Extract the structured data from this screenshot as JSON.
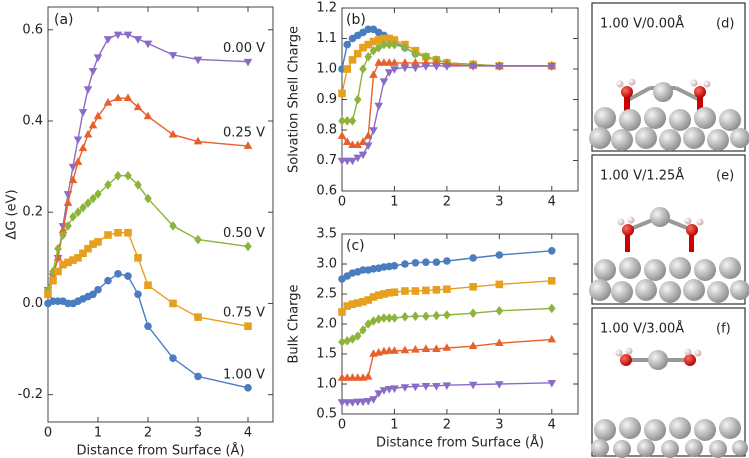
{
  "chart_data": [
    {
      "type": "line",
      "tag": "(a)",
      "xlabel": "Distance from Surface (Å)",
      "ylabel": "ΔG (eV)",
      "x": [
        0,
        0.1,
        0.2,
        0.3,
        0.4,
        0.5,
        0.6,
        0.7,
        0.8,
        0.9,
        1.0,
        1.2,
        1.4,
        1.6,
        1.8,
        2.0,
        2.5,
        3.0,
        4.0
      ],
      "xlim": [
        0,
        4.5
      ],
      "xticks": [
        0,
        1,
        2,
        3,
        4
      ],
      "ylim": [
        -0.26,
        0.65
      ],
      "yticks": [
        -0.2,
        {
          "value": 0,
          "label": "0.0"
        },
        0.2,
        0.4,
        0.6
      ],
      "series": [
        {
          "name": "0.00 V",
          "color": "#8a6cc4",
          "marker": "triangle-down",
          "values": [
            0.03,
            0.06,
            0.1,
            0.17,
            0.24,
            0.3,
            0.36,
            0.42,
            0.47,
            0.51,
            0.54,
            0.58,
            0.59,
            0.59,
            0.58,
            0.57,
            0.545,
            0.535,
            0.53
          ]
        },
        {
          "name": "0.25 V",
          "color": "#e8602c",
          "marker": "triangle-up",
          "values": [
            0.03,
            0.06,
            0.1,
            0.16,
            0.22,
            0.27,
            0.31,
            0.34,
            0.37,
            0.39,
            0.41,
            0.44,
            0.45,
            0.45,
            0.43,
            0.41,
            0.37,
            0.355,
            0.345
          ]
        },
        {
          "name": "0.50 V",
          "color": "#8cb43a",
          "marker": "diamond",
          "values": [
            0.03,
            0.07,
            0.12,
            0.15,
            0.17,
            0.19,
            0.2,
            0.21,
            0.22,
            0.23,
            0.24,
            0.26,
            0.28,
            0.28,
            0.26,
            0.23,
            0.17,
            0.14,
            0.125
          ]
        },
        {
          "name": "0.75 V",
          "color": "#e6a01e",
          "marker": "square",
          "values": [
            0.02,
            0.05,
            0.07,
            0.085,
            0.09,
            0.095,
            0.1,
            0.11,
            0.12,
            0.13,
            0.135,
            0.15,
            0.155,
            0.155,
            0.1,
            0.04,
            0.0,
            -0.03,
            -0.05
          ]
        },
        {
          "name": "1.00 V",
          "color": "#4a7cc0",
          "marker": "circle",
          "values": [
            0,
            0.005,
            0.005,
            0.005,
            0.0,
            0.0,
            0.005,
            0.01,
            0.015,
            0.02,
            0.03,
            0.05,
            0.065,
            0.06,
            0.02,
            -0.05,
            -0.12,
            -0.16,
            -0.185
          ]
        }
      ]
    },
    {
      "type": "line",
      "tag": "(b)",
      "ylabel": "Solvation Shell Charge",
      "x": [
        0,
        0.1,
        0.2,
        0.3,
        0.4,
        0.5,
        0.6,
        0.7,
        0.8,
        0.9,
        1.0,
        1.2,
        1.4,
        1.6,
        1.8,
        2.0,
        2.5,
        3.0,
        4.0
      ],
      "xlim": [
        0,
        4.5
      ],
      "xticks": [
        0,
        1,
        2,
        3,
        4
      ],
      "ylim": [
        0.6,
        1.2
      ],
      "yticks": [
        0.6,
        0.7,
        0.8,
        0.9,
        {
          "value": 1,
          "label": "1.0"
        },
        1.1,
        1.2
      ],
      "series": [
        {
          "color": "#4a7cc0",
          "marker": "circle",
          "values": [
            1.0,
            1.08,
            1.1,
            1.11,
            1.12,
            1.13,
            1.13,
            1.12,
            1.11,
            1.1,
            1.09,
            1.07,
            1.05,
            1.04,
            1.03,
            1.02,
            1.015,
            1.01,
            1.01
          ]
        },
        {
          "color": "#e6a01e",
          "marker": "square",
          "values": [
            0.92,
            1.0,
            1.03,
            1.05,
            1.07,
            1.08,
            1.09,
            1.095,
            1.1,
            1.1,
            1.095,
            1.08,
            1.06,
            1.04,
            1.03,
            1.02,
            1.015,
            1.01,
            1.01
          ]
        },
        {
          "color": "#8cb43a",
          "marker": "diamond",
          "values": [
            0.83,
            0.83,
            0.83,
            0.9,
            1.0,
            1.04,
            1.06,
            1.07,
            1.08,
            1.08,
            1.08,
            1.07,
            1.05,
            1.04,
            1.03,
            1.02,
            1.015,
            1.01,
            1.01
          ]
        },
        {
          "color": "#e8602c",
          "marker": "triangle-up",
          "values": [
            0.78,
            0.76,
            0.75,
            0.75,
            0.76,
            0.78,
            0.98,
            1.02,
            1.02,
            1.02,
            1.02,
            1.02,
            1.02,
            1.02,
            1.02,
            1.015,
            1.01,
            1.01,
            1.01
          ]
        },
        {
          "color": "#8a6cc4",
          "marker": "triangle-down",
          "values": [
            0.7,
            0.7,
            0.7,
            0.71,
            0.72,
            0.75,
            0.8,
            0.88,
            0.96,
            0.99,
            1.0,
            1.005,
            1.005,
            1.01,
            1.01,
            1.01,
            1.01,
            1.01,
            1.01
          ]
        }
      ]
    },
    {
      "type": "line",
      "tag": "(c)",
      "xlabel": "Distance from Surface (Å)",
      "ylabel": "Bulk Charge",
      "x": [
        0,
        0.1,
        0.2,
        0.3,
        0.4,
        0.5,
        0.6,
        0.7,
        0.8,
        0.9,
        1.0,
        1.2,
        1.4,
        1.6,
        1.8,
        2.0,
        2.5,
        3.0,
        4.0
      ],
      "xlim": [
        0,
        4.5
      ],
      "xticks": [
        0,
        1,
        2,
        3,
        4
      ],
      "ylim": [
        0.5,
        3.5
      ],
      "yticks": [
        0.5,
        {
          "value": 1,
          "label": "1.0"
        },
        1.5,
        {
          "value": 2,
          "label": "2.0"
        },
        2.5,
        {
          "value": 3,
          "label": "3.0"
        },
        3.5
      ],
      "series": [
        {
          "color": "#4a7cc0",
          "marker": "circle",
          "values": [
            2.75,
            2.8,
            2.85,
            2.87,
            2.9,
            2.9,
            2.92,
            2.93,
            2.95,
            2.96,
            2.97,
            3.0,
            3.02,
            3.03,
            3.03,
            3.05,
            3.1,
            3.15,
            3.22
          ]
        },
        {
          "color": "#e6a01e",
          "marker": "square",
          "values": [
            2.2,
            2.3,
            2.33,
            2.35,
            2.37,
            2.4,
            2.45,
            2.48,
            2.5,
            2.52,
            2.53,
            2.55,
            2.55,
            2.56,
            2.57,
            2.58,
            2.62,
            2.66,
            2.72
          ]
        },
        {
          "color": "#8cb43a",
          "marker": "diamond",
          "values": [
            1.7,
            1.72,
            1.75,
            1.8,
            1.9,
            2.0,
            2.05,
            2.08,
            2.1,
            2.1,
            2.1,
            2.12,
            2.13,
            2.13,
            2.14,
            2.15,
            2.18,
            2.22,
            2.26
          ]
        },
        {
          "color": "#e8602c",
          "marker": "triangle-up",
          "values": [
            1.1,
            1.1,
            1.1,
            1.1,
            1.1,
            1.12,
            1.5,
            1.52,
            1.54,
            1.55,
            1.55,
            1.56,
            1.57,
            1.58,
            1.58,
            1.6,
            1.63,
            1.68,
            1.74
          ]
        },
        {
          "color": "#8a6cc4",
          "marker": "triangle-down",
          "values": [
            0.7,
            0.7,
            0.7,
            0.71,
            0.71,
            0.72,
            0.75,
            0.85,
            0.9,
            0.92,
            0.93,
            0.95,
            0.96,
            0.97,
            0.97,
            0.98,
            0.99,
            1.0,
            1.02
          ]
        }
      ]
    }
  ],
  "panels": [
    {
      "caption": "1.00 V/0.00Å",
      "tag": "(d)"
    },
    {
      "caption": "1.00 V/1.25Å",
      "tag": "(e)"
    },
    {
      "caption": "1.00 V/3.00Å",
      "tag": "(f)"
    }
  ]
}
